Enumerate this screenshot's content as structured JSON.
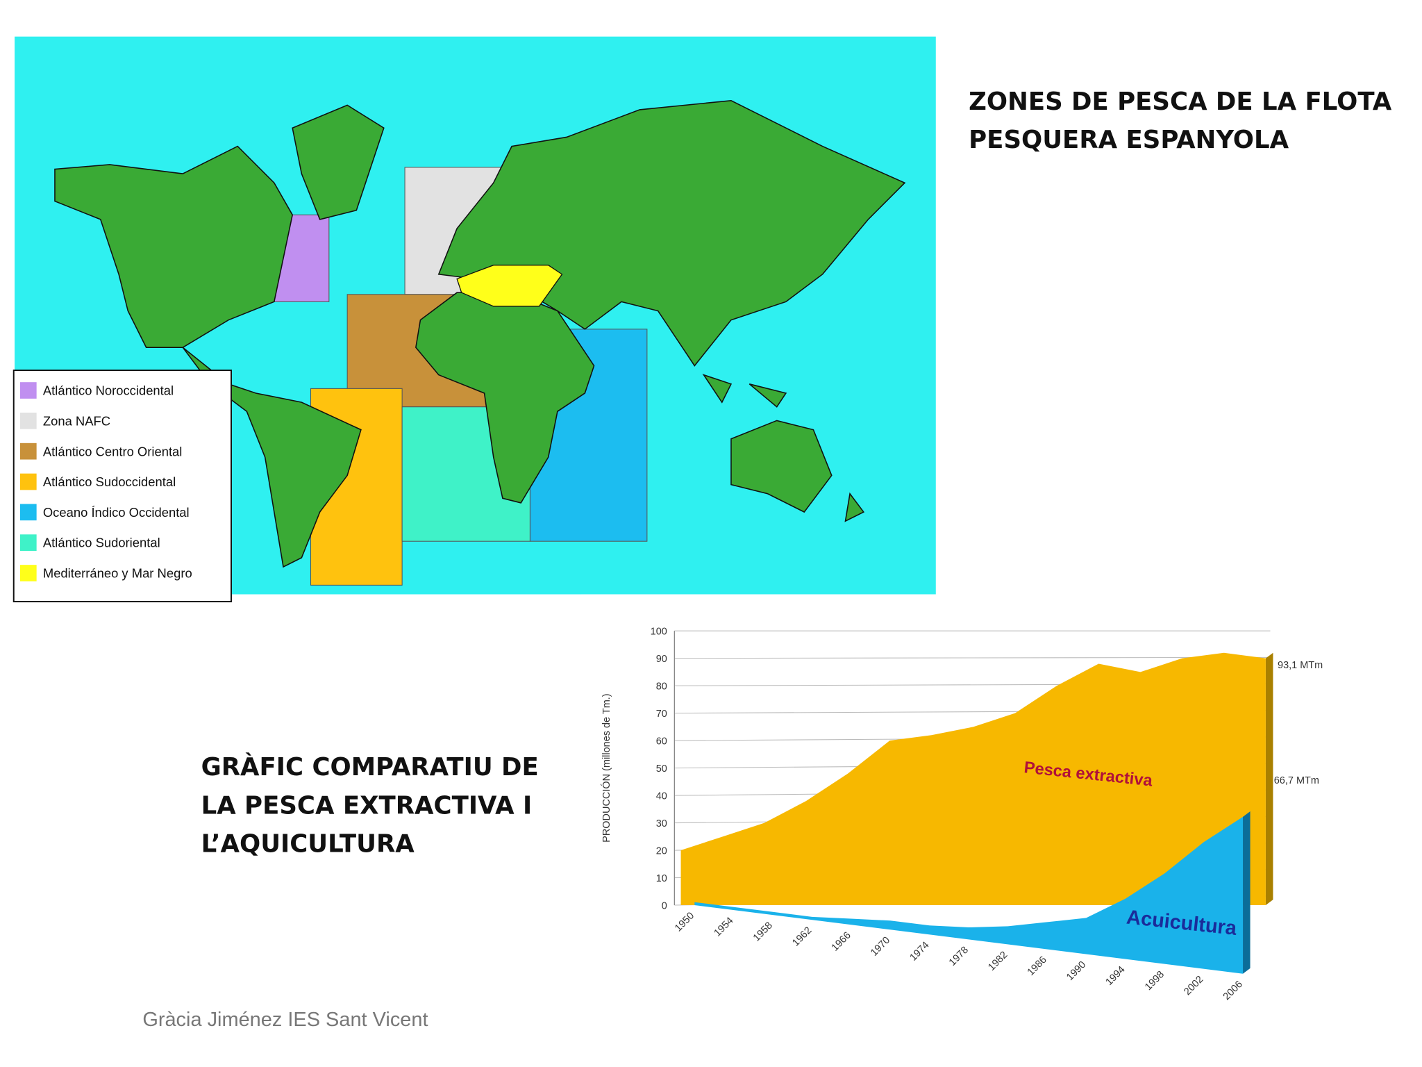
{
  "slide": {
    "title_lines": [
      "ZONES DE PESCA DE LA FLOTA",
      "PESQUERA ESPANYOLA"
    ],
    "subtitle_lines": [
      "GRÀFIC COMPARATIU DE",
      "LA PESCA EXTRACTIVA I",
      "L’AQUICULTURA"
    ],
    "footer": "Gràcia Jiménez IES Sant Vicent"
  },
  "map": {
    "legend": [
      {
        "label": "Atlántico Noroccidental",
        "color": "#c08ff0"
      },
      {
        "label": "Zona NAFC",
        "color": "#e2e2e2"
      },
      {
        "label": "Atlántico Centro Oriental",
        "color": "#c8913a"
      },
      {
        "label": "Atlántico Sudoccidental",
        "color": "#ffc20e"
      },
      {
        "label": "Oceano Índico Occidental",
        "color": "#1cbdf0"
      },
      {
        "label": "Atlántico Sudoriental",
        "color": "#3ff2c8"
      },
      {
        "label": "Mediterráneo y Mar Negro",
        "color": "#ffff1a"
      }
    ]
  },
  "chart_data": {
    "type": "area",
    "y_label": "PRODUCCIÓN (millones de Tm.)",
    "x": [
      1950,
      1954,
      1958,
      1962,
      1966,
      1970,
      1974,
      1978,
      1982,
      1986,
      1990,
      1994,
      1998,
      2002,
      2006
    ],
    "xlim": [
      1950,
      2006
    ],
    "ylim": [
      0,
      100
    ],
    "yticks": [
      0,
      10,
      20,
      30,
      40,
      50,
      60,
      70,
      80,
      90,
      100
    ],
    "grid": true,
    "series": [
      {
        "name": "Pesca extractiva",
        "color": "#f7b800",
        "values": [
          20,
          25,
          30,
          38,
          48,
          60,
          62,
          65,
          70,
          80,
          88,
          85,
          90,
          92,
          90
        ]
      },
      {
        "name": "Acuicultura",
        "color": "#1ab2ea",
        "values": [
          1,
          1,
          1,
          1,
          2,
          3,
          3,
          4,
          6,
          9,
          12,
          20,
          30,
          42,
          52
        ]
      }
    ],
    "annotations": [
      "93,1 MTm",
      "66,7 MTm"
    ]
  }
}
